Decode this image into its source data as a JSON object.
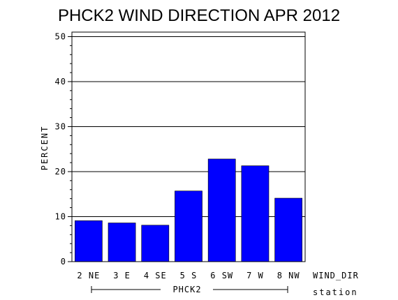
{
  "chart_data": {
    "type": "bar",
    "title": "PHCK2 WIND DIRECTION APR 2012",
    "ylabel": "PERCENT",
    "xlabel": "WIND_DIR",
    "group_label": "PHCK2",
    "group_axis_label": "station",
    "categories": [
      "2 NE",
      "3 E",
      "4 SE",
      "5 S",
      "6 SW",
      "7 W",
      "8 NW"
    ],
    "values": [
      9.1,
      8.6,
      8.1,
      15.7,
      22.8,
      21.3,
      14.1
    ],
    "ylim": [
      0,
      51
    ],
    "yticks": [
      "0",
      "10",
      "20",
      "30",
      "40",
      "50"
    ],
    "ytick_values": [
      0,
      10,
      20,
      30,
      40,
      50
    ],
    "bar_color": "#0000ff",
    "grid": true
  }
}
